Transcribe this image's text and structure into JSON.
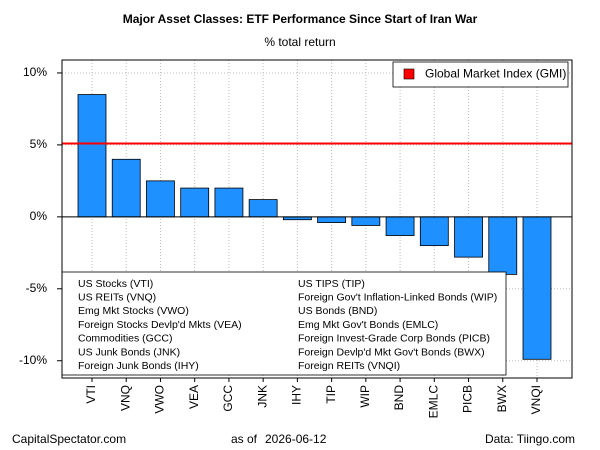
{
  "chart_data": {
    "type": "bar",
    "title": "Major Asset Classes: ETF Performance Since Start of Iran War",
    "subtitle": "% total return",
    "categories": [
      "VTI",
      "VNQ",
      "VWO",
      "VEA",
      "GCC",
      "JNK",
      "IHY",
      "TIP",
      "WIP",
      "BND",
      "EMLC",
      "PICB",
      "BWX",
      "VNQI"
    ],
    "values": [
      8.5,
      4.0,
      2.5,
      2.0,
      2.0,
      1.2,
      -0.2,
      -0.4,
      -0.6,
      -1.3,
      -2.0,
      -2.8,
      -4.0,
      -9.9
    ],
    "category_names": [
      "US Stocks (VTI)",
      "US REITs (VNQ)",
      "Emg Mkt Stocks (VWO)",
      "Foreign Stocks Devlp'd Mkts (VEA)",
      "Commodities (GCC)",
      "US Junk Bonds (JNK)",
      "Foreign Junk Bonds (IHY)",
      "US TIPS (TIP)",
      "Foreign Gov't Inflation-Linked Bonds (WIP)",
      "US Bonds (BND)",
      "Emg Mkt Gov't Bonds (EMLC)",
      "Foreign Invest-Grade Corp Bonds (PICB)",
      "Foreign Devlp'd Mkt Gov't Bonds (BWX)",
      "Foreign REITs (VNQI)"
    ],
    "color": "#1e90ff",
    "reference_line": {
      "name": "Global Market Index (GMI)",
      "value": 5.1,
      "color": "#ff0000"
    },
    "ylim": [
      -11.2,
      10.9
    ],
    "yticks": [
      {
        "value": -10,
        "label": "-10%"
      },
      {
        "value": -5,
        "label": "-5%"
      },
      {
        "value": 0,
        "label": "0%"
      },
      {
        "value": 5,
        "label": "5%"
      },
      {
        "value": 10,
        "label": "10%"
      }
    ],
    "grid": true,
    "footer": {
      "left": "CapitalSpectator.com",
      "date_prefix": "as of",
      "date": "2026-06-12",
      "right": "Data: Tiingo.com"
    }
  }
}
